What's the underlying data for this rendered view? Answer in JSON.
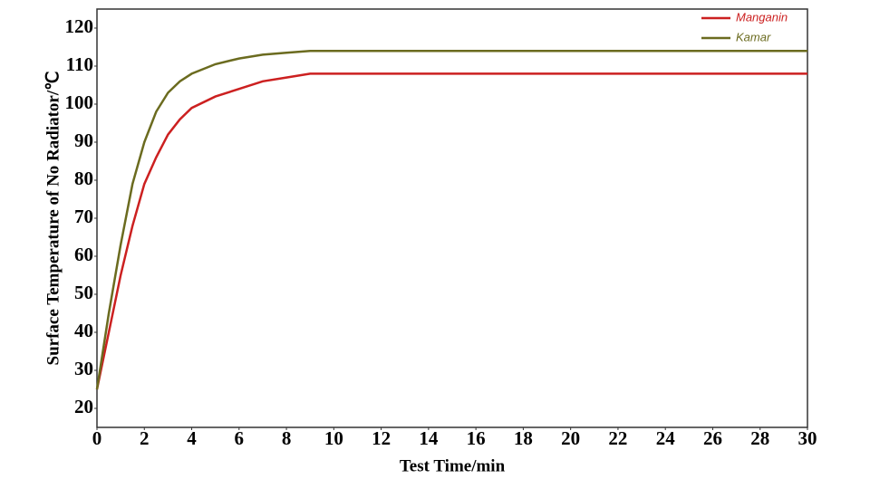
{
  "chart_data": {
    "type": "line",
    "x_label": "Test Time/min",
    "y_label": "Surface Temperature of No Radiator/℃",
    "x": [
      0,
      0.5,
      1,
      1.5,
      2,
      2.5,
      3,
      3.5,
      4,
      5,
      6,
      7,
      8,
      9,
      10,
      12,
      14,
      16,
      18,
      20,
      22,
      24,
      26,
      28,
      30
    ],
    "series": [
      {
        "name": "Manganin",
        "color": "#cc2020",
        "values": [
          25,
          40,
          55,
          68,
          79,
          86,
          92,
          96,
          99,
          102,
          104,
          106,
          107,
          108,
          108,
          108,
          108,
          108,
          108,
          108,
          108,
          108,
          108,
          108,
          108
        ]
      },
      {
        "name": "Kamar",
        "color": "#6b6b1f",
        "values": [
          25,
          45,
          63,
          79,
          90,
          98,
          103,
          106,
          108,
          110.5,
          112,
          113,
          113.5,
          114,
          114,
          114,
          114,
          114,
          114,
          114,
          114,
          114,
          114,
          114,
          114
        ]
      }
    ],
    "xlim": [
      0,
      30
    ],
    "xticks": [
      0,
      2,
      4,
      6,
      8,
      10,
      12,
      14,
      16,
      18,
      20,
      22,
      24,
      26,
      28,
      30
    ],
    "ylim": [
      15,
      125
    ],
    "yticks": [
      20,
      30,
      40,
      50,
      60,
      70,
      80,
      90,
      100,
      110,
      120
    ],
    "grid": false,
    "legend": "upper-right"
  }
}
